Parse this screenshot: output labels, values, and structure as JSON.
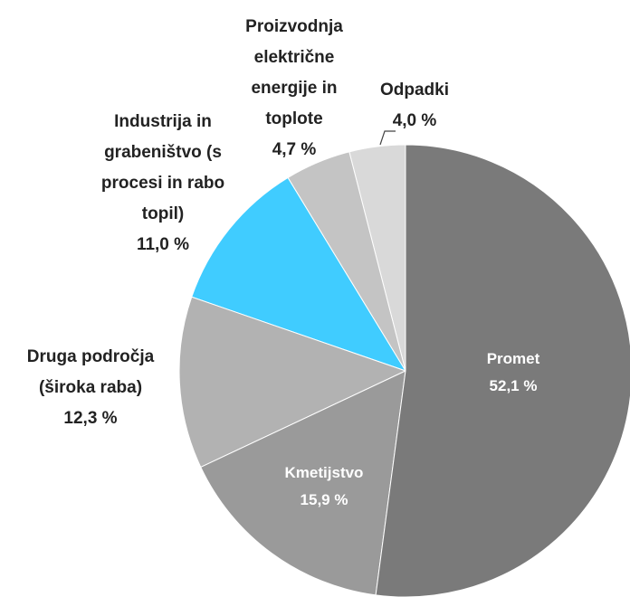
{
  "chart_data": {
    "type": "pie",
    "categories": [
      "Promet",
      "Kmetijstvo",
      "Druga področja (široka raba)",
      "Industrija in grabeništvo (s procesi in rabo topil)",
      "Proizvodnja električne energije in toplote",
      "Odpadki"
    ],
    "values": [
      52.1,
      15.9,
      12.3,
      11.0,
      4.7,
      4.0
    ],
    "value_labels": [
      "52,1 %",
      "15,9 %",
      "12,3 %",
      "11,0 %",
      "4,7 %",
      "4,0 %"
    ],
    "colors": [
      "#7a7a7a",
      "#9a9a9a",
      "#b2b2b2",
      "#40ccff",
      "#c4c4c4",
      "#d9d9d9"
    ]
  }
}
